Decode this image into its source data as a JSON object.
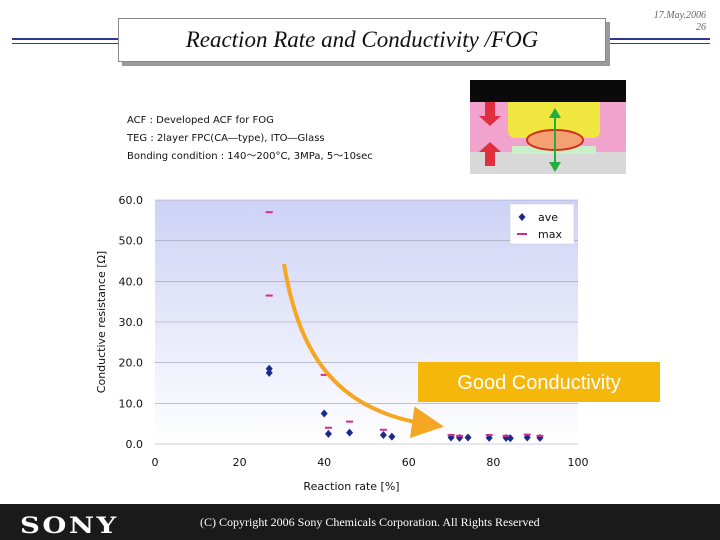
{
  "slide": {
    "title": "Reaction Rate and Conductivity /FOG",
    "date": "17.May.2006",
    "page": "26",
    "info_lines": [
      "ACF : Developed ACF for FOG",
      "TEG : 2layer FPC(CA―type), ITO―Glass",
      "Bonding condition : 140～200°C,  3MPa,  5～10sec"
    ],
    "footer": {
      "logo": "SONY",
      "copyright": "(C) Copyright 2006 Sony Chemicals Corporation. All Rights Reserved"
    },
    "annotation": "Good Conductivity",
    "colors": {
      "accent_rule": "#2b3a8c",
      "plot_bg_top": "#cdd2f5",
      "plot_bg_bottom": "#ffffff",
      "ave": "#1a2a8a",
      "max": "#d02c8c",
      "arrow": "#f5a623",
      "annotation_bg": "#f5b70a",
      "footer_bg": "#1a1a1a"
    },
    "icons": [
      "connection-cross-section-diagram",
      "compression-arrow-icon",
      "gap-arrow-icon"
    ]
  },
  "chart_data": {
    "type": "scatter",
    "xlabel": "Reaction rate [%]",
    "ylabel": "Conductive resistance [Ω]",
    "xlim": [
      0,
      100
    ],
    "ylim": [
      0,
      60
    ],
    "x_ticks": [
      "0",
      "20",
      "40",
      "60",
      "80",
      "100"
    ],
    "y_ticks": [
      "0.0",
      "10.0",
      "20.0",
      "30.0",
      "40.0",
      "50.0",
      "60.0"
    ],
    "grid": "horizontal",
    "legend_position": "top-right",
    "series": [
      {
        "name": "ave",
        "marker": "diamond",
        "points": [
          [
            27,
            18.5
          ],
          [
            27,
            17.5
          ],
          [
            40,
            7.5
          ],
          [
            41,
            2.5
          ],
          [
            46,
            2.8
          ],
          [
            54,
            2.2
          ],
          [
            56,
            1.8
          ],
          [
            70,
            1.6
          ],
          [
            72,
            1.5
          ],
          [
            74,
            1.6
          ],
          [
            79,
            1.5
          ],
          [
            83,
            1.5
          ],
          [
            84,
            1.4
          ],
          [
            88,
            1.6
          ],
          [
            91,
            1.5
          ]
        ]
      },
      {
        "name": "max",
        "marker": "dash",
        "points": [
          [
            27,
            57
          ],
          [
            27,
            36.5
          ],
          [
            40,
            17
          ],
          [
            41,
            4
          ],
          [
            46,
            5.5
          ],
          [
            54,
            3.5
          ],
          [
            70,
            2.2
          ],
          [
            72,
            2
          ],
          [
            79,
            2.2
          ],
          [
            83,
            2
          ],
          [
            88,
            2.3
          ],
          [
            91,
            2
          ]
        ]
      }
    ]
  }
}
